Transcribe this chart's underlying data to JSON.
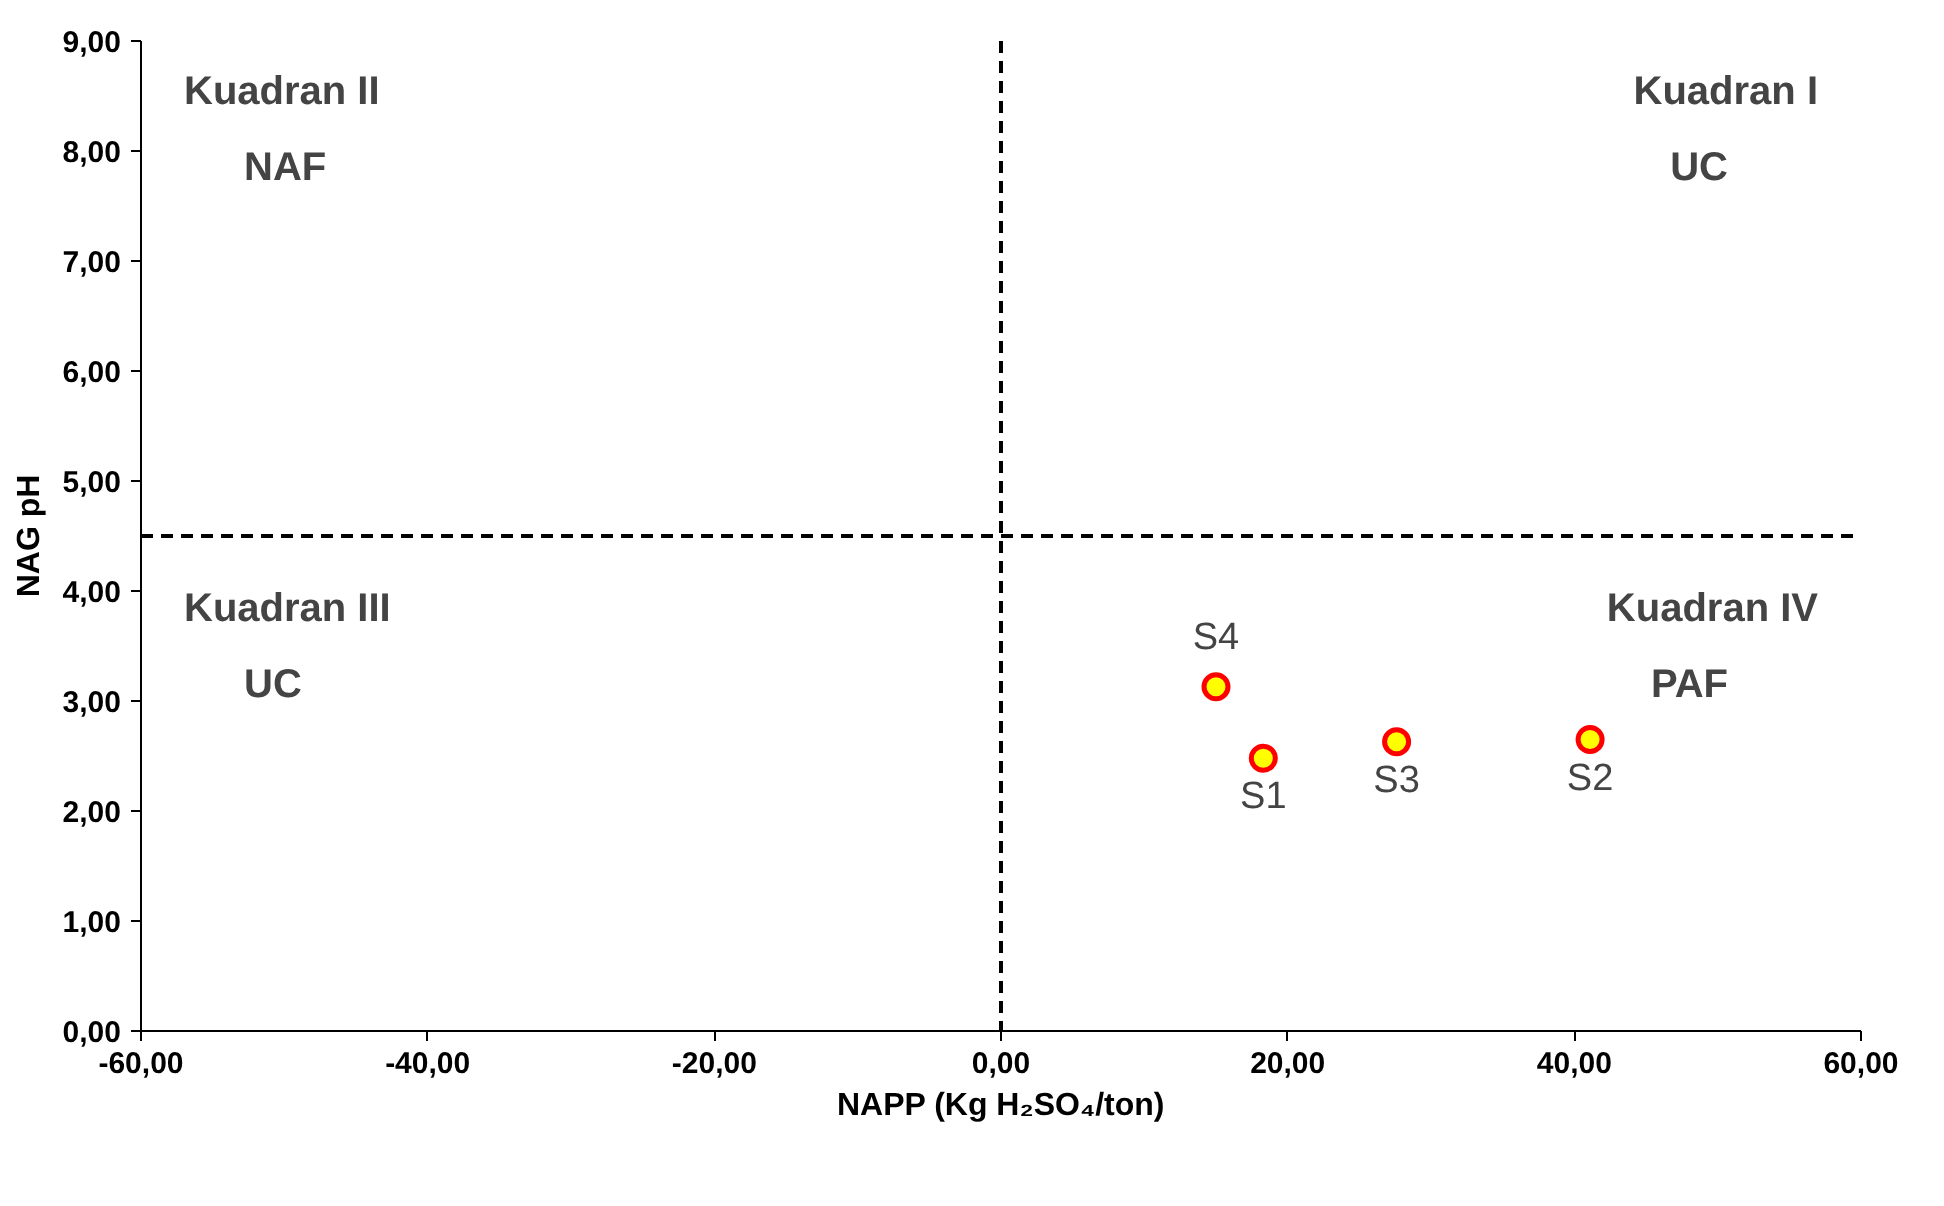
{
  "chart_data": {
    "type": "scatter",
    "xlabel": "NAPP (Kg H₂SO₄/ton)",
    "ylabel": "NAG pH",
    "x": [
      18.3,
      41.1,
      27.6,
      15.0
    ],
    "series": [
      {
        "color": "#ffff00",
        "values": [
          2.48,
          2.65,
          2.63,
          3.13
        ]
      }
    ],
    "marker": "circle",
    "grid": false,
    "xlim": [
      -60,
      60
    ],
    "ylim": [
      0,
      9
    ],
    "xticks": [
      {
        "value": -60,
        "label": "-60,00"
      },
      {
        "value": -40,
        "label": "-40,00"
      },
      {
        "value": -20,
        "label": "-20,00"
      },
      {
        "value": 0,
        "label": "0,00"
      },
      {
        "value": 20,
        "label": "20,00"
      },
      {
        "value": 40,
        "label": "40,00"
      },
      {
        "value": 60,
        "label": "60,00"
      }
    ],
    "yticks": [
      {
        "value": 0,
        "label": "0,00"
      },
      {
        "value": 1,
        "label": "1,00"
      },
      {
        "value": 2,
        "label": "2,00"
      },
      {
        "value": 3,
        "label": "3,00"
      },
      {
        "value": 4,
        "label": "4,00"
      },
      {
        "value": 5,
        "label": "5,00"
      },
      {
        "value": 6,
        "label": "6,00"
      },
      {
        "value": 7,
        "label": "7,00"
      },
      {
        "value": 8,
        "label": "8,00"
      },
      {
        "value": 9,
        "label": "9,00"
      }
    ],
    "ref_lines": [
      {
        "axis": "y",
        "value": 4.5,
        "color": "#000000",
        "line_style": "dashed"
      },
      {
        "axis": "x",
        "value": 0,
        "color": "#000000",
        "line_style": "dashed"
      }
    ],
    "annotations": [
      "Kuadran II\nNAF",
      "Kuadran I\nUC",
      "Kuadran III\nUC",
      "Kuadran IV\nPAF",
      {
        "text": "S1",
        "x": 18.3,
        "y": 2.48
      },
      {
        "text": "S2",
        "x": 41.1,
        "y": 2.65
      },
      {
        "text": "S3",
        "x": 27.6,
        "y": 2.63
      },
      {
        "text": "S4",
        "x": 15.0,
        "y": 3.13
      }
    ]
  }
}
